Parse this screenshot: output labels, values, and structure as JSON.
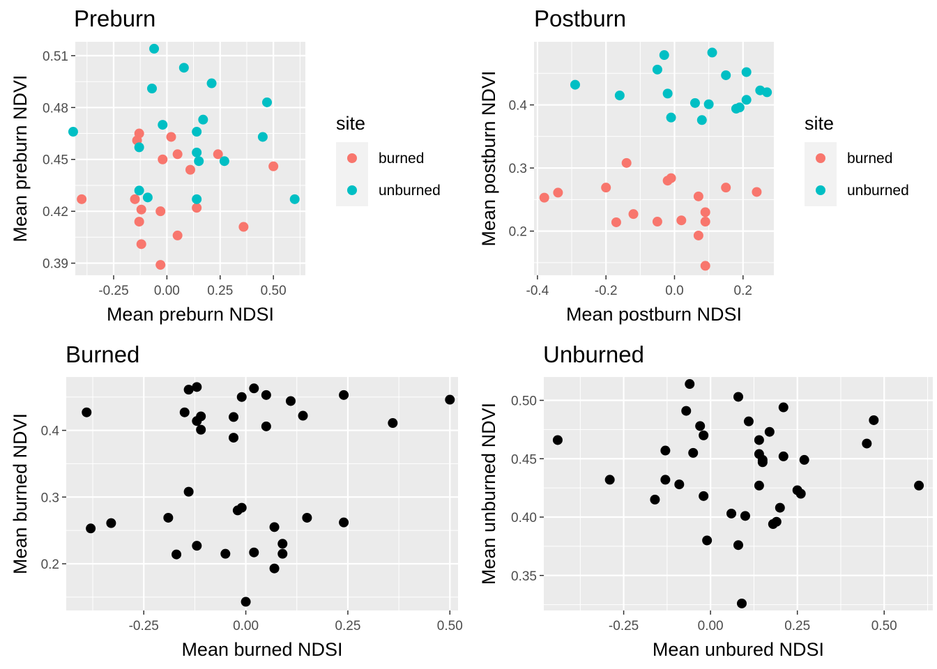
{
  "figure": {
    "panels_note": ""
  },
  "chart_data": [
    {
      "type": "scatter",
      "title": "Preburn",
      "xlabel": "Mean preburn NDSI",
      "ylabel": "Mean preburn NDVI",
      "xlim": [
        -0.43,
        0.65
      ],
      "ylim": [
        0.383,
        0.518
      ],
      "xticks": [
        -0.25,
        0.0,
        0.25,
        0.5
      ],
      "xtick_labels": [
        "-0.25",
        "0.00",
        "0.25",
        "0.50"
      ],
      "yticks": [
        0.39,
        0.42,
        0.45,
        0.48,
        0.51
      ],
      "ytick_labels": [
        "0.39",
        "0.42",
        "0.45",
        "0.48",
        "0.51"
      ],
      "grid": true,
      "legend": {
        "title": "site",
        "placement": "right",
        "entries": [
          {
            "label": "burned",
            "color": "#F8766D"
          },
          {
            "label": "unburned",
            "color": "#00BFC4"
          }
        ]
      },
      "series": [
        {
          "name": "burned",
          "color": "#F8766D",
          "x": [
            -0.4,
            -0.15,
            -0.14,
            -0.13,
            -0.12,
            -0.13,
            -0.12,
            -0.03,
            -0.02,
            0.02,
            0.05,
            0.05,
            0.11,
            0.14,
            0.24,
            0.36,
            0.5,
            -0.03
          ],
          "y": [
            0.427,
            0.427,
            0.461,
            0.465,
            0.421,
            0.414,
            0.401,
            0.42,
            0.45,
            0.463,
            0.453,
            0.406,
            0.444,
            0.422,
            0.453,
            0.411,
            0.446,
            0.389
          ]
        },
        {
          "name": "unburned",
          "color": "#00BFC4",
          "x": [
            -0.44,
            -0.13,
            -0.13,
            -0.09,
            -0.07,
            -0.06,
            -0.02,
            0.08,
            0.14,
            0.14,
            0.14,
            0.15,
            0.17,
            0.21,
            0.27,
            0.45,
            0.47,
            0.6
          ],
          "y": [
            0.466,
            0.457,
            0.432,
            0.428,
            0.491,
            0.514,
            0.47,
            0.503,
            0.466,
            0.454,
            0.427,
            0.449,
            0.473,
            0.494,
            0.449,
            0.463,
            0.483,
            0.427
          ]
        }
      ]
    },
    {
      "type": "scatter",
      "title": "Postburn",
      "xlabel": "Mean postburn NDSI",
      "ylabel": "Mean postburn NDVI",
      "xlim": [
        -0.41,
        0.29
      ],
      "ylim": [
        0.13,
        0.5
      ],
      "xticks": [
        -0.4,
        -0.2,
        0.0,
        0.2
      ],
      "xtick_labels": [
        "-0.4",
        "-0.2",
        "0.0",
        "0.2"
      ],
      "yticks": [
        0.2,
        0.3,
        0.4
      ],
      "ytick_labels": [
        "0.2",
        "0.3",
        "0.4"
      ],
      "grid": true,
      "legend": {
        "title": "site",
        "placement": "right",
        "entries": [
          {
            "label": "burned",
            "color": "#F8766D"
          },
          {
            "label": "unburned",
            "color": "#00BFC4"
          }
        ]
      },
      "series": [
        {
          "name": "burned",
          "color": "#F8766D",
          "x": [
            -0.38,
            -0.34,
            -0.2,
            -0.17,
            -0.14,
            -0.12,
            -0.05,
            -0.02,
            -0.01,
            0.02,
            0.07,
            0.07,
            0.09,
            0.09,
            0.09,
            0.15,
            0.24
          ],
          "y": [
            0.253,
            0.261,
            0.269,
            0.214,
            0.308,
            0.227,
            0.215,
            0.28,
            0.284,
            0.217,
            0.255,
            0.193,
            0.23,
            0.215,
            0.145,
            0.269,
            0.262
          ]
        },
        {
          "name": "unburned",
          "color": "#00BFC4",
          "x": [
            -0.29,
            -0.16,
            -0.05,
            -0.03,
            -0.02,
            -0.01,
            0.06,
            0.08,
            0.1,
            0.11,
            0.15,
            0.18,
            0.19,
            0.21,
            0.21,
            0.25,
            0.27
          ],
          "y": [
            0.432,
            0.415,
            0.456,
            0.479,
            0.418,
            0.38,
            0.403,
            0.376,
            0.401,
            0.483,
            0.447,
            0.394,
            0.396,
            0.408,
            0.452,
            0.423,
            0.42
          ]
        }
      ]
    },
    {
      "type": "scatter",
      "title": "Burned",
      "xlabel": "Mean burned NDSI",
      "ylabel": "Mean burned NDVI",
      "xlim": [
        -0.44,
        0.52
      ],
      "ylim": [
        0.13,
        0.48
      ],
      "xticks": [
        -0.25,
        0.0,
        0.25,
        0.5
      ],
      "xtick_labels": [
        "-0.25",
        "0.00",
        "0.25",
        "0.50"
      ],
      "yticks": [
        0.2,
        0.3,
        0.4
      ],
      "ytick_labels": [
        "0.2",
        "0.3",
        "0.4"
      ],
      "grid": true,
      "series": [
        {
          "color": "#000000",
          "x": [
            -0.39,
            -0.38,
            -0.33,
            -0.19,
            -0.17,
            -0.15,
            -0.14,
            -0.14,
            -0.12,
            -0.12,
            -0.12,
            -0.11,
            -0.11,
            -0.05,
            -0.03,
            -0.03,
            -0.02,
            -0.01,
            -0.01,
            0.0,
            0.02,
            0.02,
            0.05,
            0.05,
            0.07,
            0.07,
            0.11,
            0.09,
            0.09,
            0.14,
            0.15,
            0.24,
            0.24,
            0.36,
            0.5
          ],
          "y": [
            0.427,
            0.253,
            0.261,
            0.269,
            0.214,
            0.427,
            0.461,
            0.308,
            0.465,
            0.414,
            0.227,
            0.421,
            0.401,
            0.215,
            0.42,
            0.389,
            0.28,
            0.45,
            0.284,
            0.143,
            0.463,
            0.217,
            0.453,
            0.406,
            0.255,
            0.193,
            0.444,
            0.23,
            0.215,
            0.422,
            0.269,
            0.453,
            0.262,
            0.411,
            0.446
          ]
        }
      ]
    },
    {
      "type": "scatter",
      "title": "Unburned",
      "xlabel": "Mean unbured NDSI",
      "ylabel": "Mean unburned NDVI",
      "xlim": [
        -0.48,
        0.64
      ],
      "ylim": [
        0.32,
        0.52
      ],
      "xticks": [
        -0.25,
        0.0,
        0.25,
        0.5
      ],
      "xtick_labels": [
        "-0.25",
        "0.00",
        "0.25",
        "0.50"
      ],
      "yticks": [
        0.35,
        0.4,
        0.45,
        0.5
      ],
      "ytick_labels": [
        "0.35",
        "0.40",
        "0.45",
        "0.50"
      ],
      "grid": true,
      "series": [
        {
          "color": "#000000",
          "x": [
            -0.44,
            -0.29,
            -0.16,
            -0.13,
            -0.13,
            -0.09,
            -0.07,
            -0.06,
            -0.05,
            -0.03,
            -0.02,
            -0.02,
            -0.01,
            0.06,
            0.08,
            0.08,
            0.09,
            0.1,
            0.11,
            0.14,
            0.14,
            0.14,
            0.15,
            0.15,
            0.17,
            0.18,
            0.19,
            0.2,
            0.21,
            0.21,
            0.25,
            0.26,
            0.27,
            0.45,
            0.47,
            0.6
          ],
          "y": [
            0.466,
            0.432,
            0.415,
            0.457,
            0.432,
            0.428,
            0.491,
            0.514,
            0.455,
            0.478,
            0.418,
            0.47,
            0.38,
            0.403,
            0.503,
            0.376,
            0.326,
            0.401,
            0.482,
            0.466,
            0.454,
            0.427,
            0.449,
            0.447,
            0.473,
            0.394,
            0.396,
            0.408,
            0.494,
            0.452,
            0.423,
            0.42,
            0.449,
            0.463,
            0.483,
            0.427
          ]
        }
      ]
    }
  ]
}
